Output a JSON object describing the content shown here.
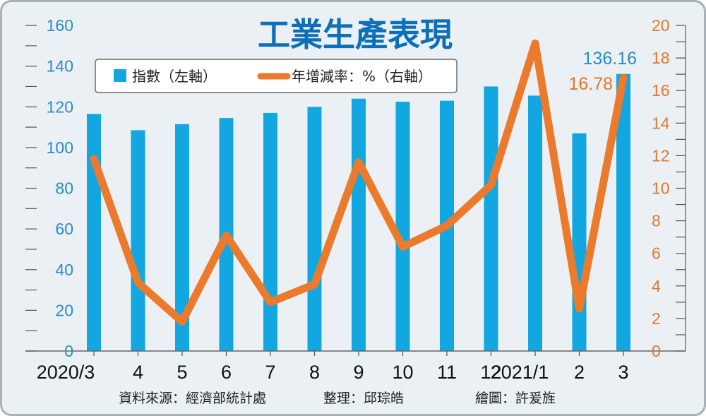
{
  "chart_data": {
    "type": "bar+line",
    "title": "工業生產表現",
    "categories": [
      "2020/3",
      "4",
      "5",
      "6",
      "7",
      "8",
      "9",
      "10",
      "11",
      "12",
      "2021/1",
      "2",
      "3"
    ],
    "series": [
      {
        "name": "指數（左軸）",
        "type": "bar",
        "axis": "left",
        "color": "#12a7e0",
        "values": [
          116.5,
          108.5,
          111.5,
          114.5,
          117,
          120,
          124,
          122.5,
          123,
          130,
          125.5,
          107,
          136.16
        ]
      },
      {
        "name": "年增減率：%（右軸）",
        "type": "line",
        "axis": "right",
        "color": "#ec7a2c",
        "values": [
          11.8,
          4.2,
          1.8,
          7.1,
          3.0,
          4.1,
          11.6,
          6.4,
          7.7,
          10.2,
          18.9,
          2.6,
          16.78
        ]
      }
    ],
    "y_left": {
      "range": [
        0,
        160
      ],
      "ticks": [
        "0",
        "20",
        "40",
        "60",
        "80",
        "100",
        "120",
        "140",
        "160"
      ]
    },
    "y_right": {
      "range": [
        0,
        20
      ],
      "ticks": [
        "0",
        "2",
        "4",
        "6",
        "8",
        "10",
        "12",
        "14",
        "16",
        "18",
        "20"
      ]
    },
    "annotations": {
      "last_index": "136.16",
      "last_growth": "16.78"
    },
    "legend": {
      "placement": "top",
      "bar_label": "指數（左軸）",
      "line_label": "年增減率：%（右軸）"
    },
    "grid": false
  },
  "footer": {
    "source": "資料來源：經濟部統計處",
    "editor": "整理：邱琮皓",
    "artist": "繪圖：許爰旌"
  },
  "colors": {
    "background": "#eaf0f3",
    "bar": "#12a7e0",
    "line": "#ec7a2c",
    "title": "#0d6fb8",
    "left_axis_text": "#2a8cc8",
    "right_axis_text": "#e2782f"
  }
}
